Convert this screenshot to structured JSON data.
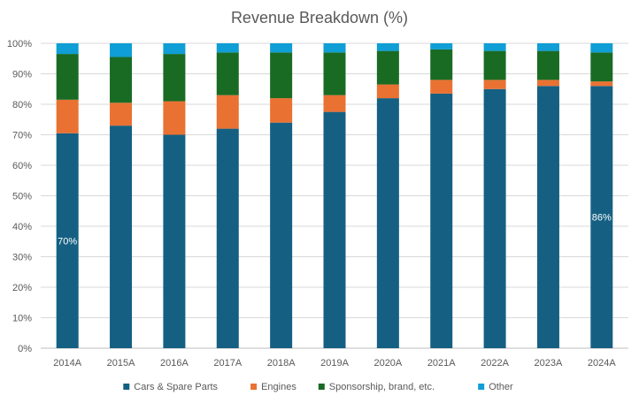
{
  "chart_data": {
    "type": "bar",
    "stacked": true,
    "title": "Revenue Breakdown (%)",
    "categories": [
      "2014A",
      "2015A",
      "2016A",
      "2017A",
      "2018A",
      "2019A",
      "2020A",
      "2021A",
      "2022A",
      "2023A",
      "2024A"
    ],
    "series": [
      {
        "name": "Cars & Spare Parts",
        "color": "#156082",
        "values": [
          70.5,
          73,
          70,
          72,
          74,
          77.5,
          82,
          83.5,
          85,
          86,
          86
        ]
      },
      {
        "name": "Engines",
        "color": "#e97132",
        "values": [
          11,
          7.5,
          11,
          11,
          8,
          5.5,
          4.5,
          4.5,
          3,
          2,
          1.5
        ]
      },
      {
        "name": "Sponsorship, brand, etc.",
        "color": "#196b24",
        "values": [
          15,
          15,
          15.5,
          14,
          15,
          14,
          11,
          10,
          9.5,
          9.5,
          9.5
        ]
      },
      {
        "name": "Other",
        "color": "#0f9ed5",
        "values": [
          3.5,
          4.5,
          3.5,
          3,
          3,
          3,
          2.5,
          2,
          2.5,
          2.5,
          3
        ]
      }
    ],
    "ylim": [
      0,
      100
    ],
    "yticks": [
      "0%",
      "10%",
      "20%",
      "30%",
      "40%",
      "50%",
      "60%",
      "70%",
      "80%",
      "90%",
      "100%"
    ],
    "grid": true,
    "legend_position": "bottom",
    "data_labels": [
      {
        "category_index": 0,
        "series_index": 0,
        "text": "70%"
      },
      {
        "category_index": 10,
        "series_index": 0,
        "text": "86%"
      }
    ]
  }
}
